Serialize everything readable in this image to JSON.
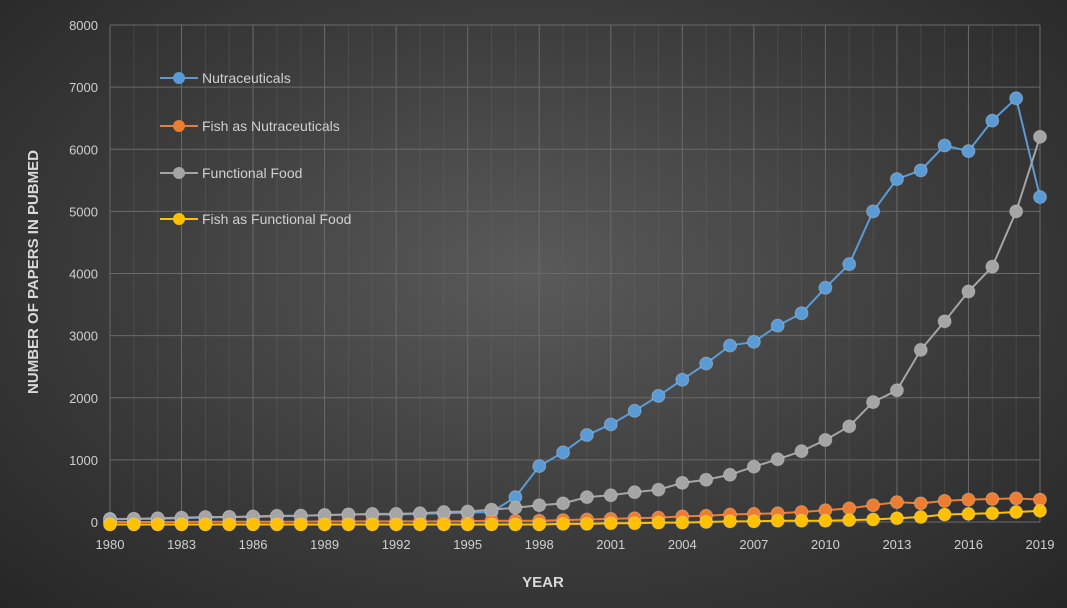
{
  "chart_data": {
    "type": "line",
    "xlabel": "YEAR",
    "ylabel": "NUMBER OF PAPERS IN PUBMED",
    "xlim": [
      1980,
      2019
    ],
    "ylim": [
      0,
      8000
    ],
    "y_ticks": [
      0,
      1000,
      2000,
      3000,
      4000,
      5000,
      6000,
      7000,
      8000
    ],
    "x_ticks": [
      1980,
      1983,
      1986,
      1989,
      1992,
      1995,
      1998,
      2001,
      2004,
      2007,
      2010,
      2013,
      2016,
      2019
    ],
    "grid": true,
    "legend_position": "top-left",
    "x": [
      1980,
      1981,
      1982,
      1983,
      1984,
      1985,
      1986,
      1987,
      1988,
      1989,
      1990,
      1991,
      1992,
      1993,
      1994,
      1995,
      1996,
      1997,
      1998,
      1999,
      2000,
      2001,
      2002,
      2003,
      2004,
      2005,
      2006,
      2007,
      2008,
      2009,
      2010,
      2011,
      2012,
      2013,
      2014,
      2015,
      2016,
      2017,
      2018,
      2019
    ],
    "series": [
      {
        "name": "Nutraceuticals",
        "color": "#5b9bd5",
        "values": [
          50,
          50,
          50,
          60,
          70,
          80,
          80,
          90,
          100,
          110,
          120,
          120,
          120,
          130,
          140,
          150,
          160,
          400,
          900,
          1120,
          1400,
          1570,
          1790,
          2030,
          2290,
          2550,
          2840,
          2900,
          3160,
          3360,
          3770,
          4150,
          5000,
          5520,
          5660,
          6060,
          5970,
          6460,
          6820,
          5230
        ]
      },
      {
        "name": "Fish as Nutraceuticals",
        "color": "#ed7d31",
        "values": [
          0,
          0,
          0,
          0,
          5,
          5,
          5,
          5,
          5,
          10,
          10,
          10,
          10,
          10,
          10,
          15,
          20,
          20,
          20,
          30,
          40,
          50,
          60,
          70,
          90,
          100,
          120,
          130,
          140,
          160,
          190,
          220,
          270,
          320,
          300,
          340,
          360,
          370,
          380,
          360
        ]
      },
      {
        "name": "Functional Food",
        "color": "#a5a5a5",
        "values": [
          40,
          50,
          60,
          70,
          80,
          80,
          90,
          100,
          100,
          110,
          120,
          130,
          130,
          140,
          160,
          170,
          200,
          230,
          270,
          300,
          400,
          430,
          480,
          520,
          630,
          680,
          760,
          890,
          1010,
          1140,
          1320,
          1540,
          1930,
          2120,
          2770,
          3230,
          3710,
          4110,
          5000,
          6200
        ]
      },
      {
        "name": "Fish as Functional Food",
        "color": "#ffc000",
        "values": [
          -40,
          -40,
          -40,
          -40,
          -40,
          -40,
          -40,
          -40,
          -40,
          -40,
          -40,
          -40,
          -40,
          -40,
          -40,
          -40,
          -40,
          -40,
          -40,
          -30,
          -30,
          -20,
          -20,
          -10,
          -10,
          0,
          10,
          10,
          20,
          20,
          20,
          30,
          40,
          60,
          80,
          120,
          130,
          140,
          160,
          180
        ]
      }
    ]
  }
}
